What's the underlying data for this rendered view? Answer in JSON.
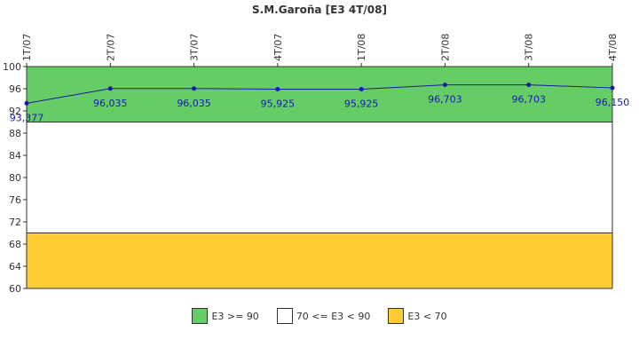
{
  "chart_data": {
    "type": "line",
    "title": "S.M.Garoña [E3 4T/08]",
    "categories": [
      "1T/07",
      "2T/07",
      "3T/07",
      "4T/07",
      "1T/08",
      "2T/08",
      "3T/08",
      "4T/08"
    ],
    "series": [
      {
        "values": [
          93.377,
          96.035,
          96.035,
          95.925,
          95.925,
          96.703,
          96.703,
          96.15
        ],
        "labels": [
          "93,377",
          "96,035",
          "96,035",
          "95,925",
          "95,925",
          "96,703",
          "96,703",
          "96,150"
        ],
        "color": "#1a1aa0"
      }
    ],
    "ylim": [
      60,
      100
    ],
    "yticks": [
      100,
      96,
      92,
      88,
      84,
      80,
      76,
      72,
      68,
      64,
      60
    ],
    "bands": [
      {
        "from": 90,
        "to": 100,
        "color": "#66cc66"
      },
      {
        "from": 70,
        "to": 90,
        "color": "#ffffff"
      },
      {
        "from": 60,
        "to": 70,
        "color": "#ffcc33"
      }
    ],
    "legend": {
      "position": "bottom",
      "items": [
        {
          "label": "E3 >= 90",
          "color": "#66cc66"
        },
        {
          "label": "70 <= E3 < 90",
          "color": "#ffffff"
        },
        {
          "label": "E3 < 70",
          "color": "#ffcc33"
        }
      ]
    }
  }
}
